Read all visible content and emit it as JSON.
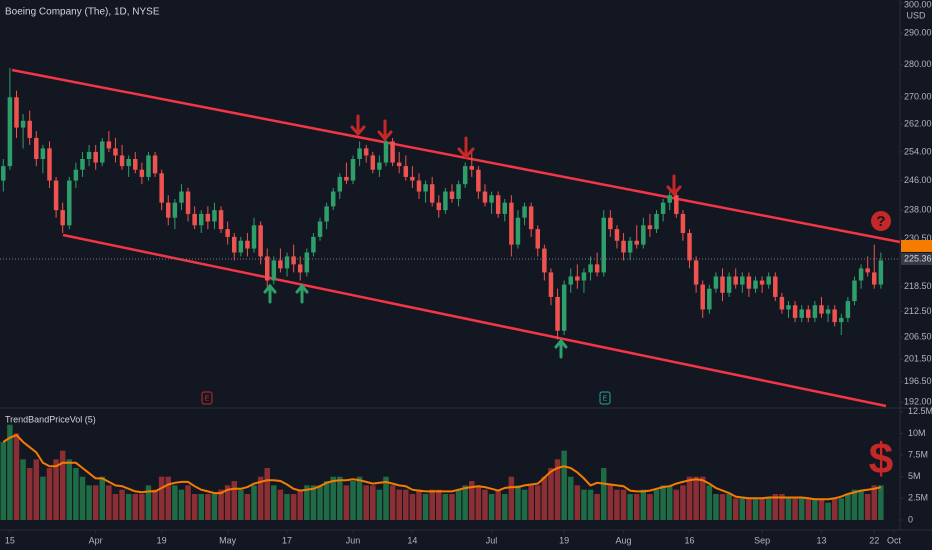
{
  "chart_data": {
    "type": "candlestick",
    "title": "Boeing Company (The), 1D, NYSE",
    "currency": "USD",
    "log": true,
    "ylim": [
      191,
      301
    ],
    "yticks": [
      {
        "value": 300,
        "label": "300.00"
      },
      {
        "value": 290,
        "label": "290.00"
      },
      {
        "value": 280,
        "label": "280.00"
      },
      {
        "value": 270,
        "label": "270.00"
      },
      {
        "value": 262,
        "label": "262.00"
      },
      {
        "value": 254,
        "label": "254.00"
      },
      {
        "value": 246,
        "label": "246.00"
      },
      {
        "value": 238,
        "label": "238.00"
      },
      {
        "value": 230.5,
        "label": "230.50"
      },
      {
        "value": 218.5,
        "label": "218.50"
      },
      {
        "value": 212.5,
        "label": "212.50"
      },
      {
        "value": 206.5,
        "label": "206.50"
      },
      {
        "value": 201.5,
        "label": "201.50"
      },
      {
        "value": 196.5,
        "label": "196.50"
      },
      {
        "value": 192,
        "label": "192.00"
      }
    ],
    "last_price": 225.36,
    "xlim": [
      -0.5,
      135.9
    ],
    "xticks": [
      {
        "value": 1,
        "label": "15"
      },
      {
        "value": 14,
        "label": "Apr"
      },
      {
        "value": 24,
        "label": "19"
      },
      {
        "value": 34,
        "label": "May"
      },
      {
        "value": 43,
        "label": "17"
      },
      {
        "value": 53,
        "label": "Jun"
      },
      {
        "value": 62,
        "label": "14"
      },
      {
        "value": 74,
        "label": "Jul"
      },
      {
        "value": 85,
        "label": "19"
      },
      {
        "value": 94,
        "label": "Aug"
      },
      {
        "value": 104,
        "label": "16"
      },
      {
        "value": 115,
        "label": "Sep"
      },
      {
        "value": 124,
        "label": "13"
      },
      {
        "value": 132,
        "label": "22"
      },
      {
        "value": 135,
        "label": "Oct"
      }
    ],
    "up_color": "#2e9e6b",
    "down_color": "#ef5350",
    "ohlc": [
      [
        246,
        252,
        243,
        250
      ],
      [
        250,
        279,
        249,
        270
      ],
      [
        270,
        272,
        258,
        261
      ],
      [
        261,
        265,
        255,
        263
      ],
      [
        263,
        266,
        256,
        258
      ],
      [
        258,
        260,
        250,
        252
      ],
      [
        252,
        256,
        248,
        255
      ],
      [
        255,
        257,
        244,
        246
      ],
      [
        246,
        247,
        236,
        238
      ],
      [
        238,
        240,
        232,
        234
      ],
      [
        234,
        247,
        233,
        246
      ],
      [
        246,
        251,
        244,
        249
      ],
      [
        249,
        254,
        247,
        252
      ],
      [
        252,
        256,
        250,
        254
      ],
      [
        254,
        256,
        249,
        251
      ],
      [
        251,
        258,
        250,
        257
      ],
      [
        257,
        260,
        254,
        255
      ],
      [
        255,
        258,
        251,
        253
      ],
      [
        253,
        256,
        249,
        250
      ],
      [
        250,
        253,
        247,
        252
      ],
      [
        252,
        254,
        248,
        249
      ],
      [
        249,
        251,
        245,
        247
      ],
      [
        247,
        254,
        246,
        253
      ],
      [
        253,
        254,
        247,
        248
      ],
      [
        248,
        249,
        238,
        240
      ],
      [
        240,
        242,
        234,
        236
      ],
      [
        236,
        241,
        233,
        240
      ],
      [
        240,
        245,
        238,
        243
      ],
      [
        243,
        244,
        235,
        237
      ],
      [
        237,
        239,
        233,
        234
      ],
      [
        234,
        238,
        232,
        237
      ],
      [
        237,
        239,
        233,
        235
      ],
      [
        235,
        240,
        233,
        238
      ],
      [
        238,
        239,
        232,
        233
      ],
      [
        233,
        235,
        229,
        231
      ],
      [
        231,
        232,
        225,
        227
      ],
      [
        227,
        231,
        226,
        230
      ],
      [
        230,
        232,
        226,
        228
      ],
      [
        228,
        236,
        227,
        234
      ],
      [
        234,
        235,
        224,
        226
      ],
      [
        226,
        228,
        218,
        220
      ],
      [
        220,
        226,
        219,
        225
      ],
      [
        225,
        228,
        222,
        223
      ],
      [
        223,
        227,
        221,
        226
      ],
      [
        226,
        229,
        222,
        224
      ],
      [
        224,
        226,
        220,
        222
      ],
      [
        222,
        228,
        221,
        227
      ],
      [
        227,
        232,
        226,
        231
      ],
      [
        231,
        236,
        230,
        235
      ],
      [
        235,
        240,
        233,
        239
      ],
      [
        239,
        244,
        238,
        243
      ],
      [
        243,
        248,
        241,
        247
      ],
      [
        247,
        251,
        245,
        246
      ],
      [
        246,
        253,
        245,
        252
      ],
      [
        252,
        257,
        250,
        255
      ],
      [
        255,
        256,
        251,
        253
      ],
      [
        253,
        254,
        248,
        249
      ],
      [
        249,
        253,
        247,
        251
      ],
      [
        251,
        258,
        250,
        257
      ],
      [
        257,
        258,
        250,
        251
      ],
      [
        251,
        254,
        248,
        250
      ],
      [
        250,
        253,
        246,
        247
      ],
      [
        247,
        250,
        244,
        246
      ],
      [
        246,
        248,
        241,
        243
      ],
      [
        243,
        246,
        240,
        245
      ],
      [
        245,
        247,
        239,
        240
      ],
      [
        240,
        242,
        236,
        238
      ],
      [
        238,
        244,
        237,
        243
      ],
      [
        243,
        245,
        240,
        241
      ],
      [
        241,
        246,
        239,
        245
      ],
      [
        245,
        251,
        244,
        250
      ],
      [
        250,
        254,
        247,
        249
      ],
      [
        249,
        250,
        241,
        243
      ],
      [
        243,
        245,
        239,
        240
      ],
      [
        240,
        243,
        237,
        242
      ],
      [
        242,
        243,
        236,
        237
      ],
      [
        237,
        241,
        235,
        240
      ],
      [
        240,
        242,
        226,
        229
      ],
      [
        229,
        238,
        228,
        236
      ],
      [
        236,
        240,
        234,
        239
      ],
      [
        239,
        240,
        231,
        233
      ],
      [
        233,
        234,
        226,
        228
      ],
      [
        228,
        229,
        220,
        222
      ],
      [
        222,
        223,
        214,
        216
      ],
      [
        216,
        218,
        206,
        208
      ],
      [
        208,
        220,
        207,
        219
      ],
      [
        219,
        223,
        217,
        221
      ],
      [
        221,
        224,
        218,
        220
      ],
      [
        220,
        223,
        217,
        222
      ],
      [
        222,
        226,
        220,
        224
      ],
      [
        224,
        227,
        221,
        222
      ],
      [
        222,
        238,
        221,
        236
      ],
      [
        236,
        238,
        231,
        233
      ],
      [
        233,
        234,
        228,
        230
      ],
      [
        230,
        232,
        225,
        227
      ],
      [
        227,
        231,
        225,
        230
      ],
      [
        230,
        234,
        228,
        229
      ],
      [
        229,
        236,
        228,
        234
      ],
      [
        234,
        237,
        231,
        233
      ],
      [
        233,
        238,
        232,
        237
      ],
      [
        237,
        241,
        235,
        240
      ],
      [
        240,
        243,
        238,
        242
      ],
      [
        242,
        243,
        236,
        237
      ],
      [
        237,
        238,
        230,
        232
      ],
      [
        232,
        233,
        223,
        225
      ],
      [
        225,
        226,
        217,
        219
      ],
      [
        219,
        220,
        211,
        213
      ],
      [
        213,
        219,
        212,
        218
      ],
      [
        218,
        222,
        217,
        221
      ],
      [
        221,
        223,
        215,
        217
      ],
      [
        217,
        222,
        216,
        221
      ],
      [
        221,
        223,
        218,
        219
      ],
      [
        219,
        222,
        217,
        221
      ],
      [
        221,
        222,
        216,
        218
      ],
      [
        218,
        221,
        217,
        220
      ],
      [
        220,
        221,
        217,
        219
      ],
      [
        219,
        222,
        218,
        221
      ],
      [
        221,
        222,
        215,
        216
      ],
      [
        216,
        217,
        212,
        213
      ],
      [
        213,
        215,
        211,
        214
      ],
      [
        214,
        215,
        210,
        211
      ],
      [
        211,
        214,
        210,
        213
      ],
      [
        213,
        214,
        210,
        211
      ],
      [
        211,
        215,
        210,
        214
      ],
      [
        214,
        216,
        211,
        212
      ],
      [
        212,
        214,
        210,
        213
      ],
      [
        213,
        214,
        209,
        210
      ],
      [
        210,
        212,
        207,
        211
      ],
      [
        211,
        216,
        210,
        215
      ],
      [
        215,
        221,
        214,
        220
      ],
      [
        220,
        224,
        218,
        223
      ],
      [
        223,
        226,
        221,
        222
      ],
      [
        222,
        229,
        218,
        219
      ],
      [
        219,
        227,
        218,
        225
      ]
    ],
    "volume": {
      "name": "TrendBandPriceVol (5)",
      "ylim": [
        0,
        12.7
      ],
      "yticks": [
        0,
        {
          "value": 2.5,
          "label": "2.5M"
        },
        {
          "value": 5,
          "label": "5M"
        },
        {
          "value": 7.5,
          "label": "7.5M"
        },
        {
          "value": 10,
          "label": "10M"
        },
        {
          "value": 12.5,
          "label": "12.5M"
        }
      ],
      "values": [
        9,
        11,
        10,
        7,
        6,
        7,
        5,
        6,
        7,
        8,
        7,
        6,
        5,
        4,
        4,
        5,
        4,
        3,
        3.5,
        3,
        3,
        3,
        4,
        3.5,
        5,
        5,
        4,
        3.5,
        4,
        3,
        3,
        3,
        3,
        3.5,
        4,
        4.5,
        3.5,
        3,
        4,
        5,
        6,
        4,
        3.5,
        3,
        3,
        3.5,
        4,
        4,
        4,
        4.5,
        5,
        5,
        4,
        4.5,
        5,
        4,
        4,
        3.5,
        5,
        4,
        3.5,
        3.5,
        3,
        3.5,
        3,
        3.5,
        3.5,
        3,
        3,
        3.5,
        4,
        4.5,
        4,
        3.5,
        3,
        3.5,
        3,
        5,
        4,
        3.5,
        4,
        4,
        5,
        6,
        7,
        8,
        5,
        4,
        3.5,
        3.5,
        3,
        6,
        4,
        3.5,
        3.5,
        3,
        3,
        3.5,
        3,
        3.5,
        4,
        4,
        3.5,
        4,
        5,
        5,
        5,
        4,
        3,
        3,
        3,
        2.5,
        2.5,
        2.5,
        2.5,
        2.5,
        2.5,
        3,
        3,
        2.5,
        2.5,
        2.5,
        2.5,
        2.5,
        2.5,
        2,
        2.5,
        2.5,
        3,
        3.5,
        3.5,
        3,
        4,
        4
      ],
      "ma": [
        9,
        9.5,
        9.8,
        9,
        8.4,
        7.8,
        6.6,
        6.2,
        6.2,
        6.6,
        6.6,
        6.6,
        6,
        5.4,
        4.8,
        4.8,
        4.4,
        4,
        3.9,
        3.6,
        3.3,
        3.2,
        3.3,
        3.3,
        3.7,
        4.1,
        4.3,
        4.4,
        4.4,
        3.9,
        3.5,
        3.3,
        3.1,
        3.1,
        3.5,
        3.6,
        3.6,
        3.8,
        4.2,
        4.4,
        4.6,
        4.6,
        4.5,
        4.1,
        3.6,
        3.4,
        3.5,
        3.6,
        3.9,
        4.3,
        4.5,
        4.6,
        4.6,
        4.7,
        4.6,
        4.4,
        4.2,
        4.3,
        4.4,
        4.2,
        4,
        3.9,
        3.5,
        3.4,
        3.3,
        3.3,
        3.3,
        3.3,
        3.3,
        3.5,
        3.7,
        3.8,
        3.9,
        3.8,
        3.6,
        3.4,
        3.7,
        3.8,
        3.8,
        4,
        4.1,
        4.2,
        4.9,
        5.6,
        6,
        6.2,
        6,
        5.5,
        4.8,
        4,
        4.3,
        4.2,
        4.1,
        4,
        3.9,
        3.4,
        3.3,
        3.3,
        3.4,
        3.6,
        3.8,
        3.9,
        4.2,
        4.4,
        4.6,
        4.7,
        4.6,
        4.2,
        3.7,
        3.4,
        3.1,
        2.7,
        2.6,
        2.5,
        2.5,
        2.5,
        2.6,
        2.6,
        2.6,
        2.6,
        2.6,
        2.6,
        2.5,
        2.4,
        2.4,
        2.4,
        2.5,
        2.7,
        3,
        3.2,
        3.4,
        3.5,
        3.6,
        3.8
      ],
      "ma_color": "#f57c00",
      "up_color": "#1f6b45",
      "down_color": "#8c2f35"
    },
    "annotations": {
      "question": "?",
      "dollar": "$",
      "earnings": "E"
    }
  }
}
